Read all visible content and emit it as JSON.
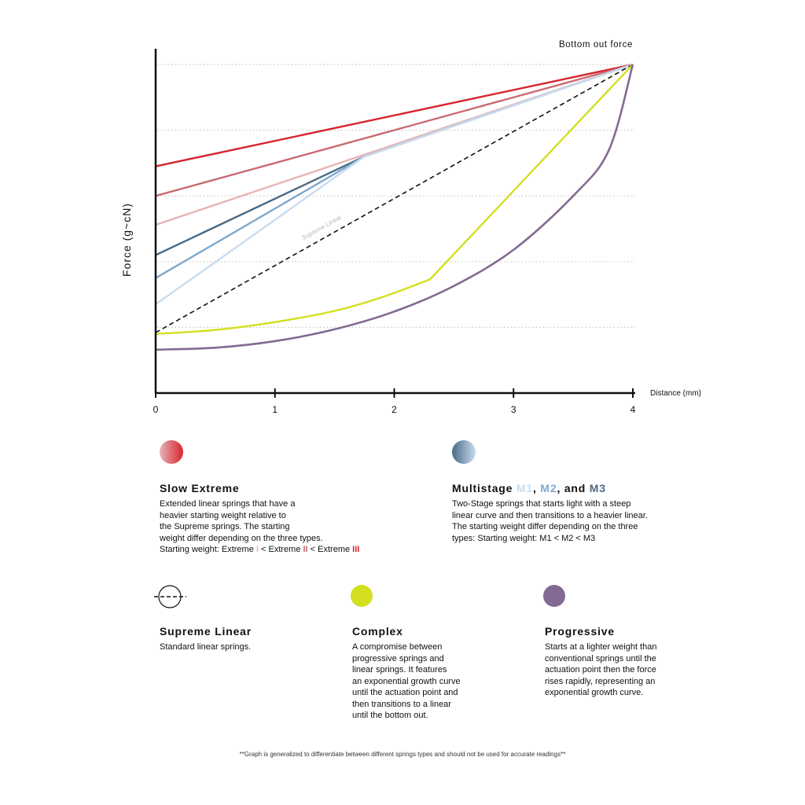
{
  "colors": {
    "extreme3": "#d6242c",
    "extreme2": "#c96b72",
    "extreme1": "#e7b4b6",
    "m3": "#4a6a86",
    "m2": "#7ea8cc",
    "m1": "#c9dcee",
    "supreme": "#111111",
    "complex": "#d4df1f",
    "progressive": "#826a92",
    "grid": "#c8c8c8"
  },
  "chart_data": {
    "type": "line",
    "title": "",
    "annotation": "Bottom out force",
    "xlabel": "Distance (mm)",
    "ylabel": "Force (g~cN)",
    "xlim": [
      0,
      4
    ],
    "ylim": [
      0,
      5
    ],
    "x_ticks": [
      "0",
      "1",
      "2",
      "3",
      "4"
    ],
    "y_grid": [
      1,
      2,
      3,
      4,
      5
    ],
    "grid": "horizontal dotted",
    "series": [
      {
        "key": "extreme3",
        "points": [
          [
            0,
            3.45
          ],
          [
            4,
            5
          ]
        ]
      },
      {
        "key": "extreme2",
        "points": [
          [
            0,
            3.0
          ],
          [
            4,
            5
          ]
        ]
      },
      {
        "key": "extreme1",
        "points": [
          [
            0,
            2.56
          ],
          [
            4,
            5
          ]
        ]
      },
      {
        "key": "m3",
        "points": [
          [
            0,
            2.1
          ],
          [
            1.75,
            3.6
          ],
          [
            4,
            5
          ]
        ]
      },
      {
        "key": "m2",
        "points": [
          [
            0,
            1.75
          ],
          [
            1.75,
            3.6
          ],
          [
            4,
            5
          ]
        ]
      },
      {
        "key": "m1",
        "points": [
          [
            0,
            1.35
          ],
          [
            1.75,
            3.6
          ],
          [
            4,
            5
          ]
        ]
      },
      {
        "key": "supreme",
        "label": "Supreme Linear",
        "dashed": true,
        "points": [
          [
            0,
            0.92
          ],
          [
            4,
            5
          ]
        ]
      },
      {
        "key": "complex",
        "points": [
          [
            0,
            0.9
          ],
          [
            0.5,
            0.96
          ],
          [
            1.0,
            1.08
          ],
          [
            1.5,
            1.25
          ],
          [
            1.9,
            1.46
          ],
          [
            2.3,
            1.73
          ],
          [
            4,
            5
          ]
        ]
      },
      {
        "key": "progressive",
        "points": [
          [
            0,
            0.66
          ],
          [
            0.5,
            0.69
          ],
          [
            1.0,
            0.79
          ],
          [
            1.5,
            0.97
          ],
          [
            2.0,
            1.24
          ],
          [
            2.5,
            1.63
          ],
          [
            3.0,
            2.18
          ],
          [
            3.5,
            3.0
          ],
          [
            3.8,
            3.7
          ],
          [
            4,
            5
          ]
        ]
      }
    ]
  },
  "legend": {
    "slow_extreme": {
      "title": "Slow Extreme",
      "line1": "Extended linear springs that have a",
      "line2": "heavier starting weight relative to",
      "line3": "the Supreme springs. The starting",
      "line4": "weight differ depending on the three types.",
      "line5_prefix": "Starting weight: Extreme ",
      "roman1": "I",
      "sep1": " < Extreme ",
      "roman2": "II",
      "sep2": " < Extreme ",
      "roman3": "III"
    },
    "multistage": {
      "title_prefix": "Multistage ",
      "m1": "M1",
      "comma": ", ",
      "m2": "M2",
      "and": ", and ",
      "m3": "M3",
      "line1": "Two-Stage springs that starts light with a steep",
      "line2": "linear curve and then transitions to a heavier linear.",
      "line3": "The starting weight differ depending on the three",
      "line4": "types: Starting weight: M1 < M2 < M3"
    },
    "supreme_linear": {
      "title": "Supreme Linear",
      "line1": "Standard linear springs."
    },
    "complex": {
      "title": "Complex",
      "line1": "A compromise between",
      "line2": "progressive springs and",
      "line3": "linear springs. It features",
      "line4": "an exponential growth curve",
      "line5": "until the actuation point and",
      "line6": "then transitions to a linear",
      "line7": "until the bottom out."
    },
    "progressive": {
      "title": "Progressive",
      "line1": "Starts at a lighter weight than",
      "line2": "conventional springs until the",
      "line3": "actuation point then the force",
      "line4": "rises rapidly, representing an",
      "line5": "exponential growth curve."
    }
  },
  "footnote": "**Graph is generalized to differentiate between different springs types and should not be used for accurate readings**"
}
